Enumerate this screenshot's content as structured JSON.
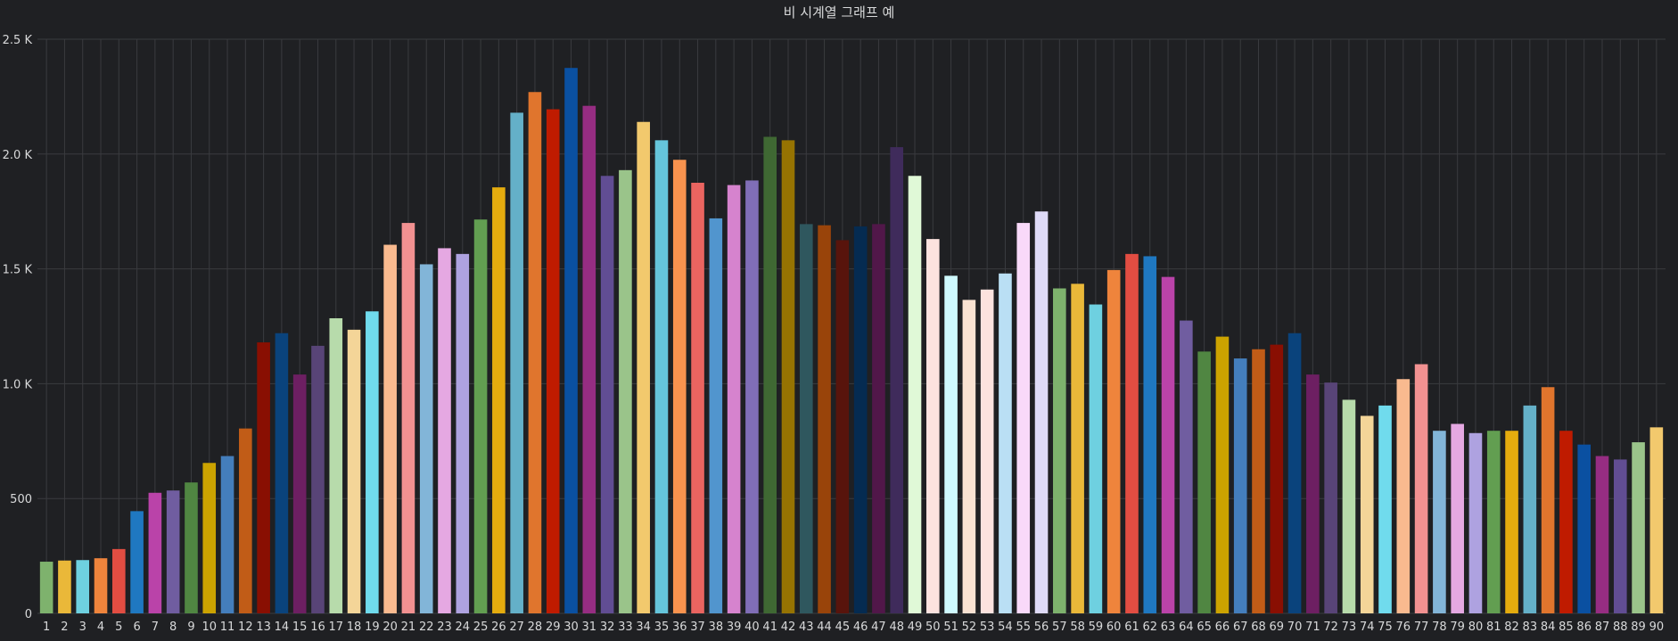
{
  "chart_data": {
    "type": "bar",
    "title": "비 시계열 그래프 예",
    "xlabel": "",
    "ylabel": "",
    "ylim": [
      0,
      2500
    ],
    "y_ticks": [
      {
        "value": 0,
        "label": "0"
      },
      {
        "value": 500,
        "label": "500"
      },
      {
        "value": 1000,
        "label": "1.0 K"
      },
      {
        "value": 1500,
        "label": "1.5 K"
      },
      {
        "value": 2000,
        "label": "2.0 K"
      },
      {
        "value": 2500,
        "label": "2.5 K"
      }
    ],
    "grid": true,
    "legend": "none",
    "categories": [
      "1",
      "2",
      "3",
      "4",
      "5",
      "6",
      "7",
      "8",
      "9",
      "10",
      "11",
      "12",
      "13",
      "14",
      "15",
      "16",
      "17",
      "18",
      "19",
      "20",
      "21",
      "22",
      "23",
      "24",
      "25",
      "26",
      "27",
      "28",
      "29",
      "30",
      "31",
      "32",
      "33",
      "34",
      "35",
      "36",
      "37",
      "38",
      "39",
      "40",
      "41",
      "42",
      "43",
      "44",
      "45",
      "46",
      "47",
      "48",
      "49",
      "50",
      "51",
      "52",
      "53",
      "54",
      "55",
      "56",
      "57",
      "58",
      "59",
      "60",
      "61",
      "62",
      "63",
      "64",
      "65",
      "66",
      "67",
      "68",
      "69",
      "70",
      "71",
      "72",
      "73",
      "74",
      "75",
      "76",
      "77",
      "78",
      "79",
      "80",
      "81",
      "82",
      "83",
      "84",
      "85",
      "86",
      "87",
      "88",
      "89",
      "90"
    ],
    "values": [
      225,
      230,
      232,
      240,
      280,
      445,
      525,
      535,
      570,
      655,
      685,
      805,
      1180,
      1220,
      1040,
      1165,
      1285,
      1235,
      1315,
      1605,
      1700,
      1520,
      1590,
      1565,
      1715,
      1855,
      2180,
      2270,
      2195,
      2375,
      2210,
      1905,
      1930,
      2140,
      2060,
      1975,
      1875,
      1720,
      1865,
      1885,
      2075,
      2060,
      1695,
      1690,
      1625,
      1685,
      1695,
      2030,
      1905,
      1630,
      1470,
      1365,
      1410,
      1480,
      1700,
      1750,
      1415,
      1435,
      1345,
      1495,
      1565,
      1555,
      1465,
      1275,
      1140,
      1205,
      1110,
      1150,
      1170,
      1220,
      1040,
      1005,
      930,
      860,
      905,
      1020,
      1085,
      795,
      825,
      785,
      795,
      795,
      905,
      985,
      795,
      735,
      685,
      670,
      745,
      810
    ],
    "colors": [
      "#7eb26d",
      "#eab839",
      "#6ed0e0",
      "#ef843c",
      "#e24d42",
      "#1f78c1",
      "#ba43a9",
      "#705da0",
      "#508642",
      "#cca300",
      "#447ebc",
      "#c15c17",
      "#890f02",
      "#0a437c",
      "#6d1f62",
      "#584477",
      "#b7dbab",
      "#f4d598",
      "#70dbed",
      "#f9ba8f",
      "#f29191",
      "#82b5d8",
      "#e5a8e2",
      "#aea2e0",
      "#629e51",
      "#e5ac0e",
      "#64b0c8",
      "#e0752d",
      "#bf1b00",
      "#0a50a1",
      "#962d82",
      "#614d93",
      "#9ac48a",
      "#f2c96d",
      "#65c5db",
      "#f9934e",
      "#ea6460",
      "#5195ce",
      "#d683ce",
      "#806eb7",
      "#3f6833",
      "#967302",
      "#2f575e",
      "#99440a",
      "#58140c",
      "#052b51",
      "#511749",
      "#3f2b5b",
      "#e0f9d7",
      "#fce2de",
      "#cffaff",
      "#f9e2d2",
      "#fce2de",
      "#badff4",
      "#f9d9f9",
      "#dedaf7",
      "#7eb26d",
      "#eab839",
      "#6ed0e0",
      "#ef843c",
      "#e24d42",
      "#1f78c1",
      "#ba43a9",
      "#705da0",
      "#508642",
      "#cca300",
      "#447ebc",
      "#c15c17",
      "#890f02",
      "#0a437c",
      "#6d1f62",
      "#584477",
      "#b7dbab",
      "#f4d598",
      "#70dbed",
      "#f9ba8f",
      "#f29191",
      "#82b5d8",
      "#e5a8e2",
      "#aea2e0",
      "#629e51",
      "#e5ac0e",
      "#64b0c8",
      "#e0752d",
      "#bf1b00",
      "#0a50a1",
      "#962d82",
      "#614d93",
      "#9ac48a",
      "#f2c96d"
    ]
  }
}
